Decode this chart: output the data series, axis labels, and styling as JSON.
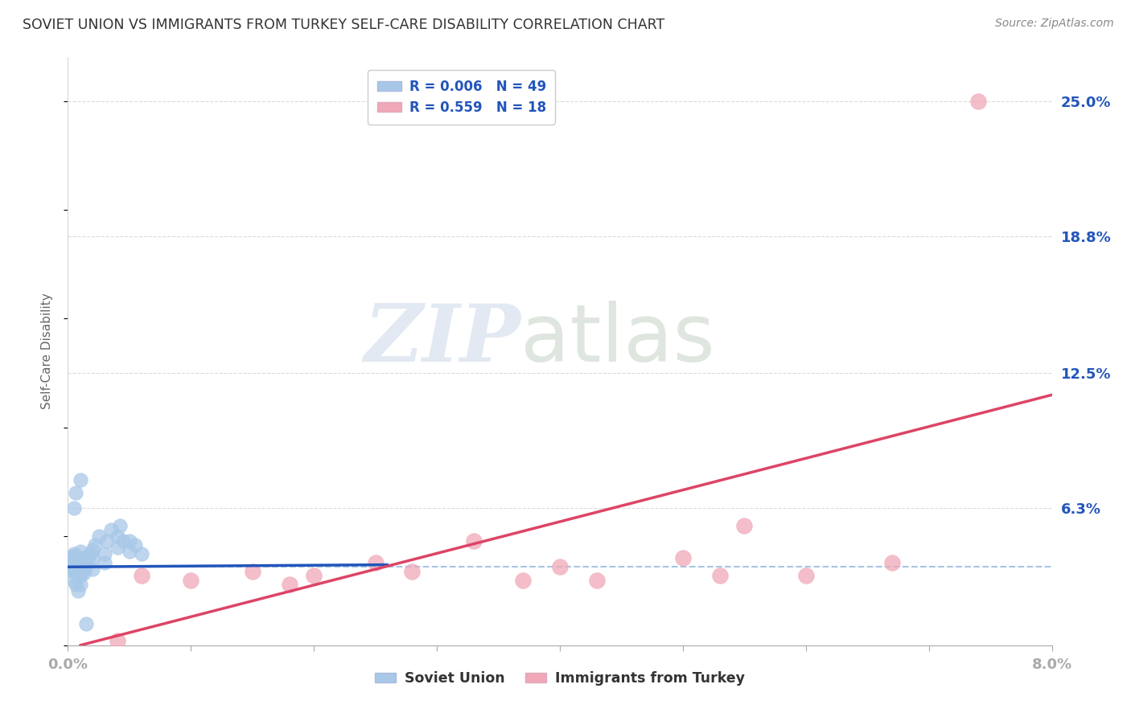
{
  "title": "SOVIET UNION VS IMMIGRANTS FROM TURKEY SELF-CARE DISABILITY CORRELATION CHART",
  "source": "Source: ZipAtlas.com",
  "ylabel_label": "Self-Care Disability",
  "ytick_labels": [
    "6.3%",
    "12.5%",
    "18.8%",
    "25.0%"
  ],
  "ytick_values": [
    0.063,
    0.125,
    0.188,
    0.25
  ],
  "xlim": [
    0.0,
    0.08
  ],
  "ylim": [
    0.0,
    0.27
  ],
  "legend1_label": "R = 0.006   N = 49",
  "legend2_label": "R = 0.559   N = 18",
  "soviet_color": "#a8c8e8",
  "turkey_color": "#f0a8b8",
  "blue_line_color": "#2255bb",
  "pink_line_color": "#dd4466",
  "dashed_color": "#99bbdd",
  "grid_color": "#d8d8d8",
  "soviet_x": [
    0.0002,
    0.0003,
    0.0003,
    0.0004,
    0.0004,
    0.0004,
    0.0005,
    0.0005,
    0.0005,
    0.0006,
    0.0006,
    0.0007,
    0.0007,
    0.0008,
    0.0008,
    0.0009,
    0.0009,
    0.001,
    0.001,
    0.001,
    0.001,
    0.0012,
    0.0012,
    0.0013,
    0.0014,
    0.0015,
    0.0016,
    0.0018,
    0.002,
    0.002,
    0.002,
    0.0022,
    0.0025,
    0.003,
    0.003,
    0.0032,
    0.0035,
    0.004,
    0.004,
    0.0042,
    0.0045,
    0.005,
    0.005,
    0.0055,
    0.006,
    0.0005,
    0.0006,
    0.001,
    0.0015
  ],
  "soviet_y": [
    0.035,
    0.038,
    0.04,
    0.036,
    0.038,
    0.041,
    0.03,
    0.034,
    0.042,
    0.028,
    0.037,
    0.033,
    0.04,
    0.025,
    0.035,
    0.032,
    0.038,
    0.028,
    0.032,
    0.038,
    0.043,
    0.036,
    0.04,
    0.033,
    0.037,
    0.036,
    0.04,
    0.042,
    0.035,
    0.04,
    0.044,
    0.046,
    0.05,
    0.038,
    0.042,
    0.048,
    0.053,
    0.045,
    0.05,
    0.055,
    0.048,
    0.043,
    0.048,
    0.046,
    0.042,
    0.063,
    0.07,
    0.076,
    0.01
  ],
  "turkey_x": [
    0.004,
    0.006,
    0.01,
    0.015,
    0.018,
    0.02,
    0.025,
    0.028,
    0.033,
    0.037,
    0.04,
    0.043,
    0.05,
    0.053,
    0.055,
    0.06,
    0.067,
    0.074
  ],
  "turkey_y": [
    0.002,
    0.032,
    0.03,
    0.034,
    0.028,
    0.032,
    0.038,
    0.034,
    0.048,
    0.03,
    0.036,
    0.03,
    0.04,
    0.032,
    0.055,
    0.032,
    0.038,
    0.25
  ],
  "blue_trendline_x": [
    0.0,
    0.026
  ],
  "blue_trendline_y": [
    0.036,
    0.037
  ],
  "pink_trendline_x": [
    0.001,
    0.08
  ],
  "pink_trendline_y": [
    0.0,
    0.115
  ],
  "dashed_line_y": 0.036,
  "bg_color": "#ffffff"
}
